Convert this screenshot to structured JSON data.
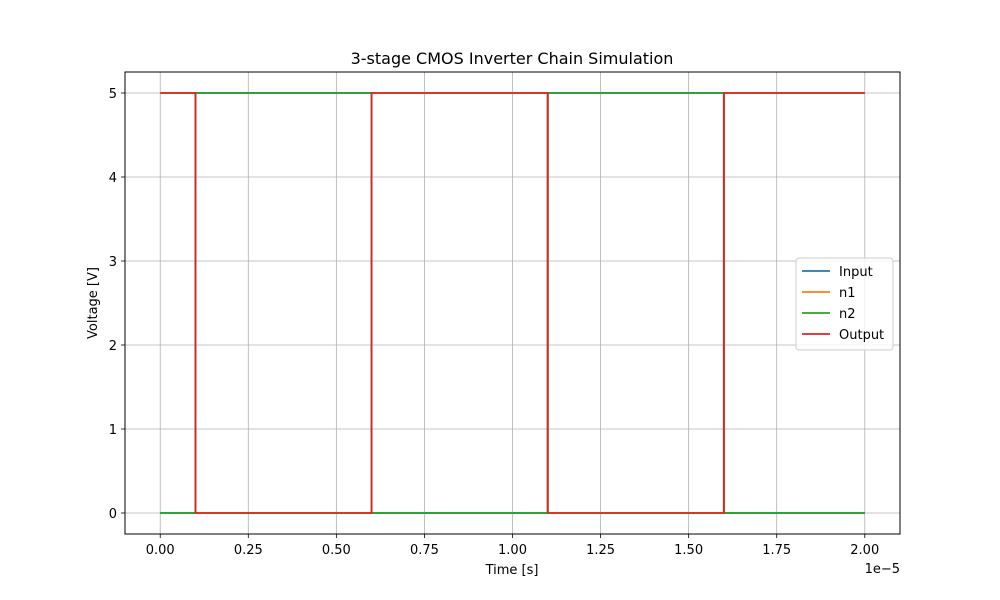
{
  "chart_data": {
    "type": "line",
    "title": "3-stage CMOS Inverter Chain Simulation",
    "xlabel": "Time [s]",
    "ylabel": "Voltage [V]",
    "x_offset_label": "1e−5",
    "xlim": [
      -0.1,
      2.1
    ],
    "ylim": [
      -0.25,
      5.25
    ],
    "x_ticks": [
      0.0,
      0.25,
      0.5,
      0.75,
      1.0,
      1.25,
      1.5,
      1.75,
      2.0
    ],
    "x_tick_labels": [
      "0.00",
      "0.25",
      "0.50",
      "0.75",
      "1.00",
      "1.25",
      "1.50",
      "1.75",
      "2.00"
    ],
    "y_ticks": [
      0,
      1,
      2,
      3,
      4,
      5
    ],
    "y_tick_labels": [
      "0",
      "1",
      "2",
      "3",
      "4",
      "5"
    ],
    "grid": true,
    "legend_position": "center-right",
    "series": [
      {
        "name": "Input",
        "color": "#1f77b4",
        "x": [
          0.0,
          0.1,
          0.1,
          0.6,
          0.6,
          1.1,
          1.1,
          1.6,
          1.6,
          2.0
        ],
        "y": [
          0,
          0,
          5,
          5,
          0,
          0,
          5,
          5,
          0,
          0
        ]
      },
      {
        "name": "n1",
        "color": "#ff7f0e",
        "x": [
          0.0,
          0.1,
          0.1,
          0.6,
          0.6,
          1.1,
          1.1,
          1.6,
          1.6,
          2.0
        ],
        "y": [
          5,
          5,
          0,
          0,
          5,
          5,
          0,
          0,
          5,
          5
        ]
      },
      {
        "name": "n2",
        "color": "#2ca02c",
        "x": [
          0.0,
          0.1,
          0.1,
          0.6,
          0.6,
          1.1,
          1.1,
          1.6,
          1.6,
          2.0
        ],
        "y": [
          0,
          0,
          5,
          5,
          0,
          0,
          5,
          5,
          0,
          0
        ]
      },
      {
        "name": "Output",
        "color": "#d62728",
        "x": [
          0.0,
          0.1,
          0.1,
          0.6,
          0.6,
          1.1,
          1.1,
          1.6,
          1.6,
          2.0
        ],
        "y": [
          5,
          5,
          0,
          0,
          5,
          5,
          0,
          0,
          5,
          5
        ]
      }
    ]
  }
}
